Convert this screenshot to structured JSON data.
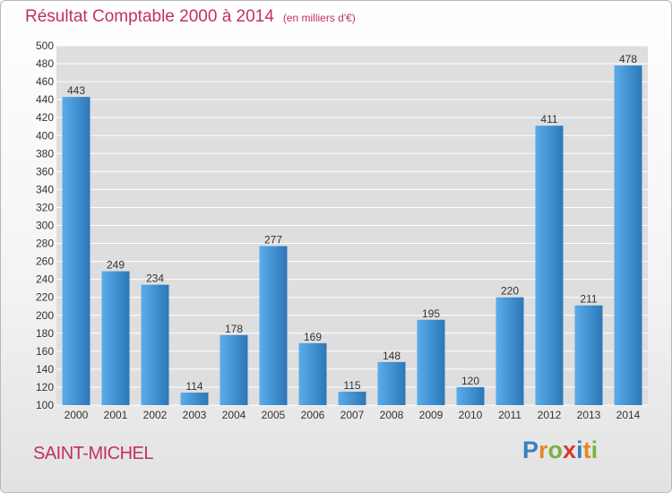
{
  "header": {
    "title": "Résultat Comptable 2000 à 2014",
    "unit": "(en milliers d'€)"
  },
  "footer": {
    "commune": "SAINT-MICHEL",
    "brand": "Proxiti",
    "brand_letters": [
      "P",
      "r",
      "o",
      "x",
      "i",
      "t",
      "i"
    ],
    "brand_colors": [
      "#3a7fc0",
      "#e58a1f",
      "#7bb241",
      "#d33a2e",
      "#3a7fc0",
      "#e58a1f",
      "#7bb241"
    ]
  },
  "colors": {
    "title": "#c4305b",
    "bar_light": "#5aacea",
    "bar_dark": "#2c77b8",
    "grid": "#ffffff"
  },
  "chart_data": {
    "type": "bar",
    "title": "Résultat Comptable 2000 à 2014",
    "subtitle": "(en milliers d'€)",
    "xlabel": "",
    "ylabel": "",
    "ylim": [
      100,
      500
    ],
    "y_ticks": [
      100,
      120,
      140,
      160,
      180,
      200,
      220,
      240,
      260,
      280,
      300,
      320,
      340,
      360,
      380,
      400,
      420,
      440,
      460,
      480,
      500
    ],
    "categories": [
      "2000",
      "2001",
      "2002",
      "2003",
      "2004",
      "2005",
      "2006",
      "2007",
      "2008",
      "2009",
      "2010",
      "2011",
      "2012",
      "2013",
      "2014"
    ],
    "values": [
      443,
      249,
      234,
      114,
      178,
      277,
      169,
      115,
      148,
      195,
      120,
      220,
      411,
      211,
      478
    ],
    "grid": true
  }
}
